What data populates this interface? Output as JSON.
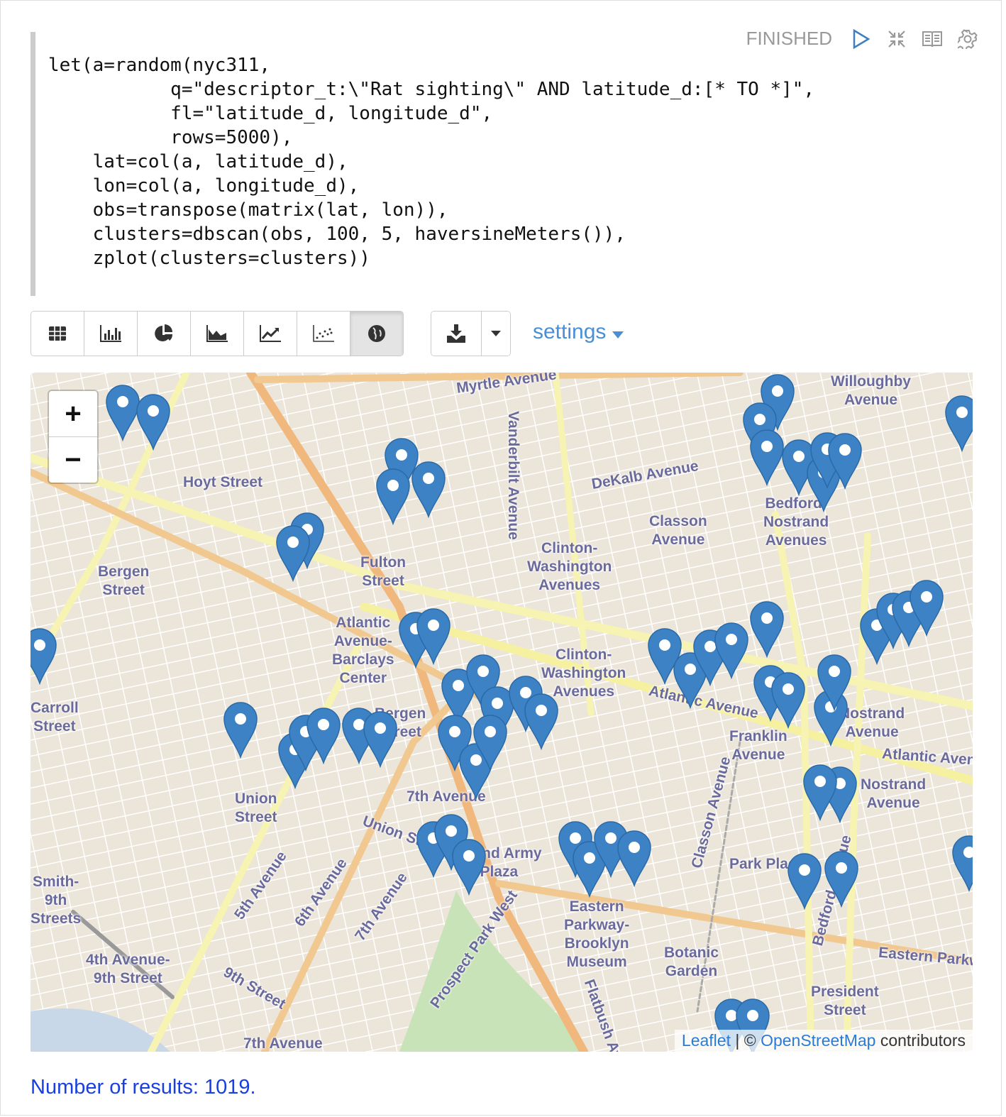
{
  "paragraph": {
    "status": "FINISHED",
    "code_lines": [
      "let(a=random(nyc311,",
      "           q=\"descriptor_t:\\\"Rat sighting\\\" AND latitude_d:[* TO *]\",",
      "           fl=\"latitude_d, longitude_d\",",
      "           rows=5000),",
      "    lat=col(a, latitude_d),",
      "    lon=col(a, longitude_d),",
      "    obs=transpose(matrix(lat, lon)),",
      "    clusters=dbscan(obs, 100, 5, haversineMeters()),",
      "    zplot(clusters=clusters))"
    ],
    "icons": [
      "play-icon",
      "collapse-icon",
      "book-icon",
      "gear-icon"
    ]
  },
  "toolbar": {
    "views": [
      "table",
      "bar-chart",
      "pie-chart",
      "area-chart",
      "line-chart",
      "scatter-chart",
      "map"
    ],
    "active_view": "map",
    "download": "download-icon",
    "settings_label": "settings"
  },
  "map": {
    "zoom_in": "+",
    "zoom_out": "−",
    "marker_color": "#3d82c4",
    "labels": [
      "Myrtle Avenue",
      "Vanderbilt Avenue",
      "DeKalb Avenue",
      "Hoyt Street",
      "Bergen\nStreet",
      "Fulton\nStreet",
      "Clinton-\nWashington\nAvenues",
      "Classon\nAvenue",
      "Bedford-\nNostrand\nAvenues",
      "Willoughby\nAvenue",
      "Atlantic\nAvenue-\nBarclays\nCenter",
      "Clinton-\nWashington\nAvenues",
      "Atlantic Avenue",
      "Franklin\nAvenue",
      "Nostrand\nAvenue",
      "Atlantic Avenue",
      "Nostrand\nAvenue",
      "Carroll\nStreet",
      "Bergen\nStreet",
      "7th Avenue",
      "Union\nStreet",
      "Union Street",
      "Grand Army\nPlaza",
      "Park Place",
      "Classon Avenue",
      "Bedford Avenue",
      "Eastern\nParkway-\nBrooklyn\nMuseum",
      "Botanic\nGarden",
      "Eastern Parkway",
      "President\nStreet",
      "4th Avenue-\n9th Street",
      "9th Street",
      "7th Avenue",
      "5th Avenue",
      "6th Avenue",
      "7th Avenue",
      "Prospect Park West",
      "Flatbush Avenue",
      "Smith-\n9th\nStreets"
    ],
    "attribution": {
      "leaflet": "Leaflet",
      "sep": " | © ",
      "osm": "OpenStreetMap",
      "suffix": " contributors"
    }
  },
  "results": "Number of results: 1019."
}
